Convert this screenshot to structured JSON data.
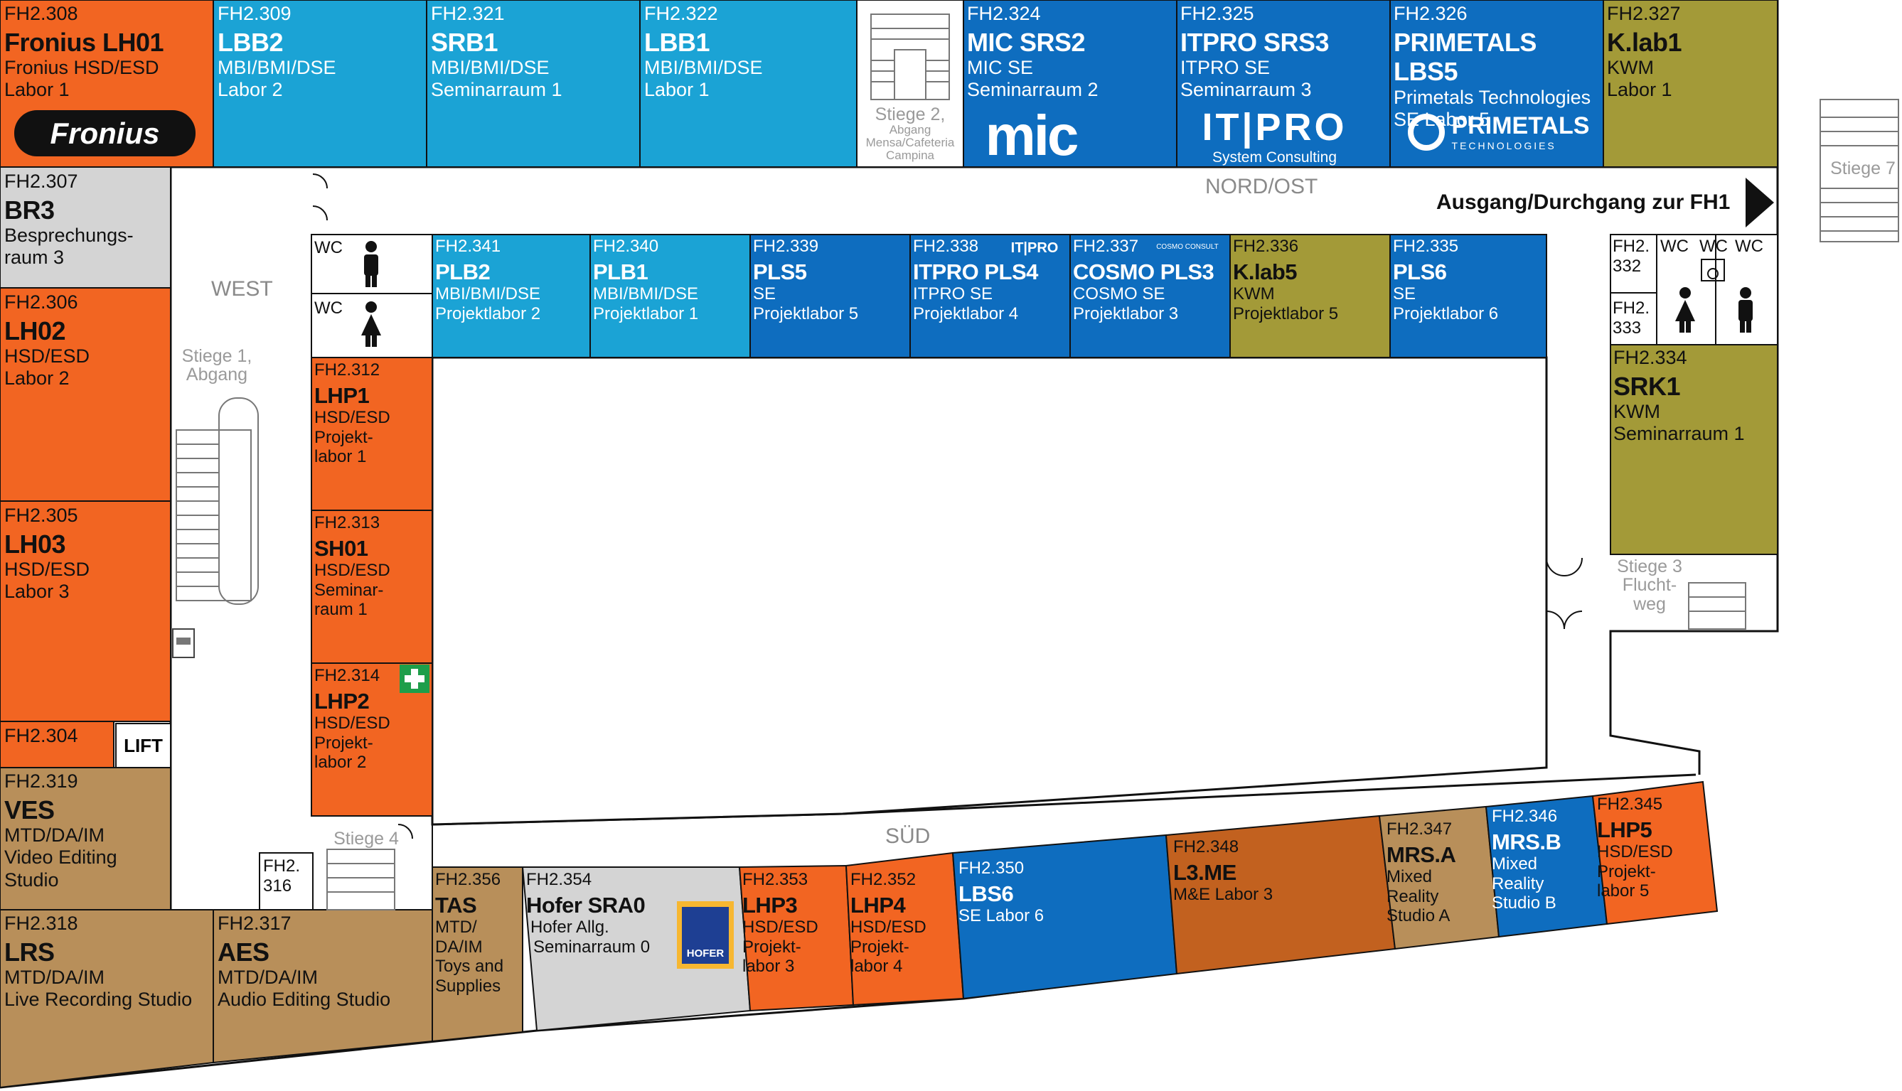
{
  "colors": {
    "orange": "#F26522",
    "cyan": "#1BA3D5",
    "blue": "#0E6DBF",
    "olive": "#A39A38",
    "tan": "#B88F5A",
    "brown": "#C2611F",
    "grey": "#D4D4D4",
    "outline": "#111111"
  },
  "areas": {
    "west": "WEST",
    "nord_ost": "NORD/OST",
    "sued": "SÜD"
  },
  "exit_label": "Ausgang/Durchgang zur FH1",
  "lift_label": "LIFT",
  "stairs": {
    "s1": [
      "Stiege 1,",
      "Abgang"
    ],
    "s2": [
      "Stiege 2,",
      "Abgang",
      "Mensa/Cafeteria",
      "Campina"
    ],
    "s3": [
      "Stiege 3",
      "Flucht-",
      "weg"
    ],
    "s4": [
      "Stiege 4"
    ],
    "s7": [
      "Stiege 7"
    ]
  },
  "wc": {
    "label": "WC",
    "small_rooms": [
      "FH2.",
      "332",
      "FH2.",
      "333"
    ],
    "fh2_316": [
      "FH2.",
      "316"
    ]
  },
  "logos": {
    "fronius": "Fronius",
    "mic": "mic",
    "itpro": "IT|PRO",
    "itpro_sub": "System Consulting",
    "primetals": "PRIMETALS",
    "primetals_sub": "TECHNOLOGIES",
    "hofer": "HOFER",
    "cosmo": "COSMO CONSULT"
  },
  "rooms": {
    "r308": {
      "code": "FH2.308",
      "name": "Fronius LH01",
      "sub1": "Fronius HSD/ESD",
      "sub2": "Labor 1",
      "sub3": ""
    },
    "r309": {
      "code": "FH2.309",
      "name": "LBB2",
      "sub1": "MBI/BMI/DSE",
      "sub2": "Labor 2",
      "sub3": ""
    },
    "r321": {
      "code": "FH2.321",
      "name": "SRB1",
      "sub1": "MBI/BMI/DSE",
      "sub2": "Seminarraum 1",
      "sub3": ""
    },
    "r322": {
      "code": "FH2.322",
      "name": "LBB1",
      "sub1": "MBI/BMI/DSE",
      "sub2": "Labor 1",
      "sub3": ""
    },
    "r324": {
      "code": "FH2.324",
      "name": "MIC SRS2",
      "sub1": "MIC SE",
      "sub2": "Seminarraum 2",
      "sub3": ""
    },
    "r325": {
      "code": "FH2.325",
      "name": "ITPRO SRS3",
      "sub1": "ITPRO SE",
      "sub2": "Seminarraum 3",
      "sub3": ""
    },
    "r326": {
      "code": "FH2.326",
      "name": "PRIMETALS LBS5",
      "sub1": "Primetals Technologies",
      "sub2": "SE Labor 5",
      "sub3": ""
    },
    "r327": {
      "code": "FH2.327",
      "name": "K.lab1",
      "sub1": "KWM",
      "sub2": "Labor 1",
      "sub3": ""
    },
    "r307": {
      "code": "FH2.307",
      "name": "BR3",
      "sub1": "Besprechungs-",
      "sub2": "raum 3",
      "sub3": ""
    },
    "r306": {
      "code": "FH2.306",
      "name": "LH02",
      "sub1": "HSD/ESD",
      "sub2": "Labor 2",
      "sub3": ""
    },
    "r305": {
      "code": "FH2.305",
      "name": "LH03",
      "sub1": "HSD/ESD",
      "sub2": "Labor 3",
      "sub3": ""
    },
    "r304": {
      "code": "FH2.304",
      "name": "",
      "sub1": "",
      "sub2": "",
      "sub3": ""
    },
    "r319": {
      "code": "FH2.319",
      "name": "VES",
      "sub1": "MTD/DA/IM",
      "sub2": "Video Editing",
      "sub3": "Studio"
    },
    "r318": {
      "code": "FH2.318",
      "name": "LRS",
      "sub1": "MTD/DA/IM",
      "sub2": "Live Recording Studio",
      "sub3": ""
    },
    "r317": {
      "code": "FH2.317",
      "name": "AES",
      "sub1": "MTD/DA/IM",
      "sub2": "Audio Editing Studio",
      "sub3": ""
    },
    "r341": {
      "code": "FH2.341",
      "name": "PLB2",
      "sub1": "MBI/BMI/DSE",
      "sub2": "Projektlabor 2",
      "sub3": ""
    },
    "r340": {
      "code": "FH2.340",
      "name": "PLB1",
      "sub1": "MBI/BMI/DSE",
      "sub2": "Projektlabor 1",
      "sub3": ""
    },
    "r339": {
      "code": "FH2.339",
      "name": "PLS5",
      "sub1": "SE",
      "sub2": "Projektlabor 5",
      "sub3": ""
    },
    "r338": {
      "code": "FH2.338",
      "name": "ITPRO PLS4",
      "sub1": "ITPRO SE",
      "sub2": "Projektlabor 4",
      "sub3": ""
    },
    "r337": {
      "code": "FH2.337",
      "name": "COSMO PLS3",
      "sub1": "COSMO SE",
      "sub2": "Projektlabor 3",
      "sub3": ""
    },
    "r336": {
      "code": "FH2.336",
      "name": "K.lab5",
      "sub1": "KWM",
      "sub2": "Projektlabor 5",
      "sub3": ""
    },
    "r335": {
      "code": "FH2.335",
      "name": "PLS6",
      "sub1": "SE",
      "sub2": "Projektlabor 6",
      "sub3": ""
    },
    "r334": {
      "code": "FH2.334",
      "name": "SRK1",
      "sub1": "KWM",
      "sub2": "Seminarraum 1",
      "sub3": ""
    },
    "r312": {
      "code": "FH2.312",
      "name": "LHP1",
      "sub1": "HSD/ESD",
      "sub2": "Projekt-",
      "sub3": "labor 1"
    },
    "r313": {
      "code": "FH2.313",
      "name": "SH01",
      "sub1": "HSD/ESD",
      "sub2": "Seminar-",
      "sub3": "raum 1"
    },
    "r314": {
      "code": "FH2.314",
      "name": "LHP2",
      "sub1": "HSD/ESD",
      "sub2": "Projekt-",
      "sub3": "labor 2"
    },
    "r356": {
      "code": "FH2.356",
      "name": "TAS",
      "sub1": "MTD/",
      "sub2": "DA/IM",
      "sub3": "Toys and",
      "sub4": "Supplies"
    },
    "r354": {
      "code": "FH2.354",
      "name": "Hofer SRA0",
      "sub1": "Hofer Allg.",
      "sub2": "Seminarraum 0",
      "sub3": ""
    },
    "r353": {
      "code": "FH2.353",
      "name": "LHP3",
      "sub1": "HSD/ESD",
      "sub2": "Projekt-",
      "sub3": "labor 3"
    },
    "r352": {
      "code": "FH2.352",
      "name": "LHP4",
      "sub1": "HSD/ESD",
      "sub2": "Projekt-",
      "sub3": "labor 4"
    },
    "r350": {
      "code": "FH2.350",
      "name": "LBS6",
      "sub1": "SE Labor 6",
      "sub2": "",
      "sub3": ""
    },
    "r348": {
      "code": "FH2.348",
      "name": "L3.ME",
      "sub1": "M&E Labor 3",
      "sub2": "",
      "sub3": ""
    },
    "r347": {
      "code": "FH2.347",
      "name": "MRS.A",
      "sub1": "Mixed",
      "sub2": "Reality",
      "sub3": "Studio A"
    },
    "r346": {
      "code": "FH2.346",
      "name": "MRS.B",
      "sub1": "Mixed",
      "sub2": "Reality",
      "sub3": "Studio B"
    },
    "r345": {
      "code": "FH2.345",
      "name": "LHP5",
      "sub1": "HSD/ESD",
      "sub2": "Projekt-",
      "sub3": "labor 5"
    }
  }
}
